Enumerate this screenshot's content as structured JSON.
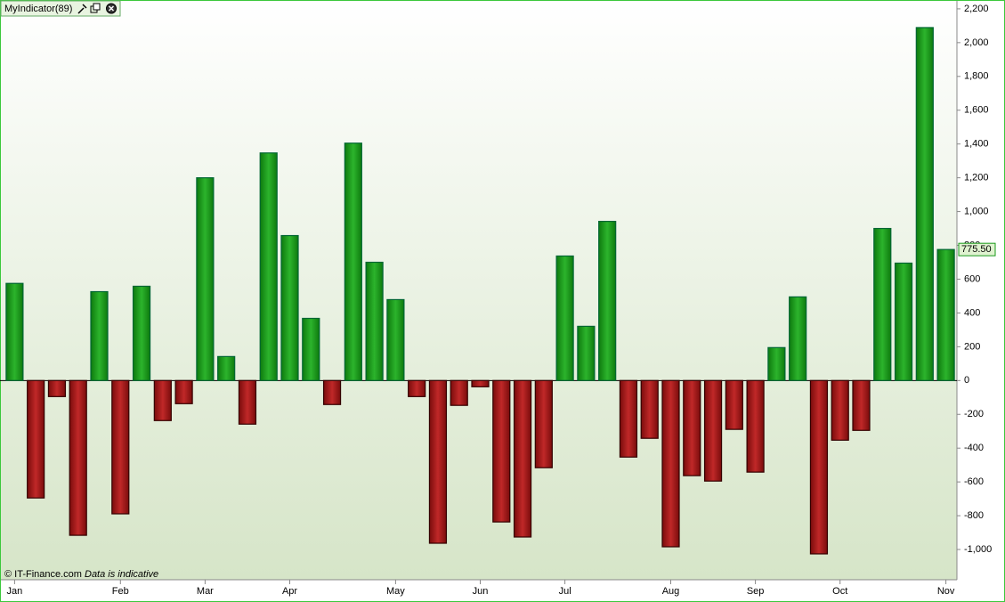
{
  "chart_data": {
    "type": "bar",
    "title": "MyIndicator(89)",
    "credit": "© IT-Finance.com",
    "note": "Data is indicative",
    "categories": [
      "Jan",
      null,
      null,
      null,
      null,
      "Feb",
      null,
      null,
      null,
      "Mar",
      null,
      null,
      null,
      "Apr",
      null,
      null,
      null,
      null,
      "May",
      null,
      null,
      null,
      "Jun",
      null,
      null,
      null,
      "Jul",
      null,
      null,
      null,
      null,
      "Aug",
      null,
      null,
      null,
      "Sep",
      null,
      null,
      null,
      "Oct",
      null,
      null,
      null,
      null,
      "Nov"
    ],
    "values": [
      575,
      -695,
      -95,
      -916,
      526,
      -789,
      558,
      -237,
      -137,
      1200,
      142,
      -258,
      1347,
      858,
      368,
      -142,
      1405,
      700,
      479,
      -95,
      -963,
      -147,
      -37,
      -837,
      -926,
      -516,
      737,
      321,
      942,
      -453,
      -342,
      -984,
      -563,
      -595,
      -289,
      -542,
      195,
      495,
      -1026,
      -353,
      -295,
      900,
      695,
      2089,
      775.5
    ],
    "current_value": {
      "value": 775.5,
      "label": "775.50"
    },
    "up_color": "#1a9a1a",
    "down_color": "#a01818",
    "ylim": [
      -1179,
      2247
    ],
    "yticks": [
      {
        "value": -1000,
        "label": "-1,000"
      },
      -800,
      -600,
      -400,
      -200,
      0,
      200,
      400,
      600,
      800,
      {
        "value": 1000,
        "label": "1,000"
      },
      {
        "value": 1200,
        "label": "1,200"
      },
      {
        "value": 1400,
        "label": "1,400"
      },
      {
        "value": 1600,
        "label": "1,600"
      },
      {
        "value": 1800,
        "label": "1,800"
      },
      {
        "value": 2000,
        "label": "2,000"
      },
      {
        "value": 2200,
        "label": "2,200"
      }
    ]
  }
}
